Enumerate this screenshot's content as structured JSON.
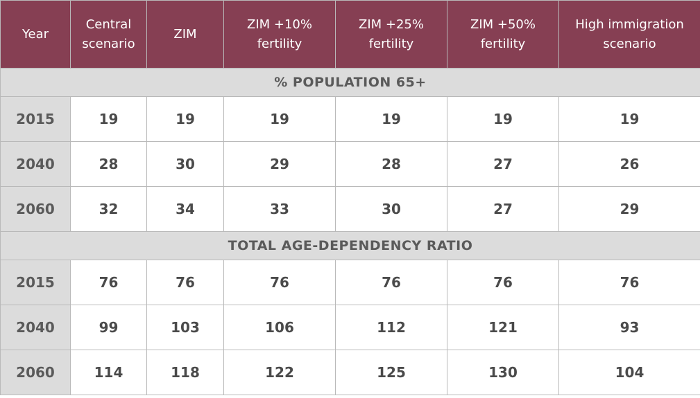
{
  "header": {
    "year": "Year",
    "central": [
      "Central",
      "scenario"
    ],
    "zim": "ZIM",
    "zim10": [
      "ZIM +10%",
      "fertility"
    ],
    "zim25": [
      "ZIM +25%",
      "fertility"
    ],
    "zim50": [
      "ZIM +50%",
      "fertility"
    ],
    "high": [
      "High immigration",
      "scenario"
    ]
  },
  "sections": [
    {
      "title": "% POPULATION 65+",
      "rows": [
        {
          "year": "2015",
          "values": [
            "19",
            "19",
            "19",
            "19",
            "19",
            "19"
          ]
        },
        {
          "year": "2040",
          "values": [
            "28",
            "30",
            "29",
            "28",
            "27",
            "26"
          ]
        },
        {
          "year": "2060",
          "values": [
            "32",
            "34",
            "33",
            "30",
            "27",
            "29"
          ]
        }
      ]
    },
    {
      "title": "TOTAL AGE-DEPENDENCY RATIO",
      "rows": [
        {
          "year": "2015",
          "values": [
            "76",
            "76",
            "76",
            "76",
            "76",
            "76"
          ]
        },
        {
          "year": "2040",
          "values": [
            "99",
            "103",
            "106",
            "112",
            "121",
            "93"
          ]
        },
        {
          "year": "2060",
          "values": [
            "114",
            "118",
            "122",
            "125",
            "130",
            "104"
          ]
        }
      ]
    }
  ]
}
